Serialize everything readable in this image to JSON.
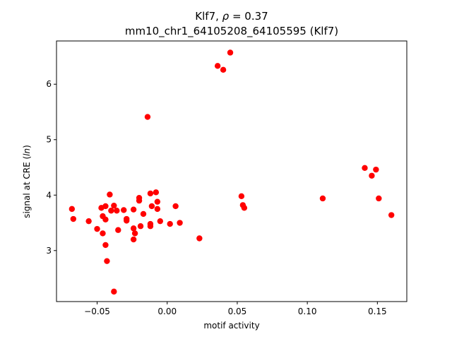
{
  "chart_data": {
    "type": "scatter",
    "title_line1_prefix": "Klf7, ",
    "title_line1_rho": "ρ",
    "title_line1_suffix": " = 0.37",
    "title_line2": "mm10_chr1_64105208_64105595 (Klf7)",
    "xlabel": "motif activity",
    "ylabel_prefix": "signal at CRE (",
    "ylabel_italic": "ln",
    "ylabel_suffix": ")",
    "xlim": [
      -0.079,
      0.171
    ],
    "ylim": [
      2.08,
      6.78
    ],
    "xticks": [
      -0.05,
      0.0,
      0.05,
      0.1,
      0.15
    ],
    "xtick_labels": [
      "−0.05",
      "0.00",
      "0.05",
      "0.10",
      "0.15"
    ],
    "yticks": [
      3,
      4,
      5,
      6
    ],
    "ytick_labels": [
      "3",
      "4",
      "5",
      "6"
    ],
    "marker_color": "#ff0000",
    "grid": false,
    "points": [
      {
        "x": -0.068,
        "y": 3.75
      },
      {
        "x": -0.067,
        "y": 3.57
      },
      {
        "x": -0.056,
        "y": 3.53
      },
      {
        "x": -0.05,
        "y": 3.39
      },
      {
        "x": -0.047,
        "y": 3.77
      },
      {
        "x": -0.046,
        "y": 3.62
      },
      {
        "x": -0.046,
        "y": 3.31
      },
      {
        "x": -0.044,
        "y": 3.56
      },
      {
        "x": -0.044,
        "y": 3.8
      },
      {
        "x": -0.044,
        "y": 3.1
      },
      {
        "x": -0.043,
        "y": 2.81
      },
      {
        "x": -0.041,
        "y": 4.01
      },
      {
        "x": -0.04,
        "y": 3.72
      },
      {
        "x": -0.038,
        "y": 3.81
      },
      {
        "x": -0.038,
        "y": 2.26
      },
      {
        "x": -0.036,
        "y": 3.72
      },
      {
        "x": -0.035,
        "y": 3.37
      },
      {
        "x": -0.031,
        "y": 3.73
      },
      {
        "x": -0.029,
        "y": 3.54
      },
      {
        "x": -0.029,
        "y": 3.57
      },
      {
        "x": -0.024,
        "y": 3.74
      },
      {
        "x": -0.024,
        "y": 3.4
      },
      {
        "x": -0.024,
        "y": 3.2
      },
      {
        "x": -0.023,
        "y": 3.31
      },
      {
        "x": -0.02,
        "y": 3.9
      },
      {
        "x": -0.02,
        "y": 3.95
      },
      {
        "x": -0.019,
        "y": 3.44
      },
      {
        "x": -0.017,
        "y": 3.66
      },
      {
        "x": -0.014,
        "y": 5.41
      },
      {
        "x": -0.012,
        "y": 4.03
      },
      {
        "x": -0.012,
        "y": 3.44
      },
      {
        "x": -0.012,
        "y": 3.48
      },
      {
        "x": -0.011,
        "y": 3.8
      },
      {
        "x": -0.008,
        "y": 4.05
      },
      {
        "x": -0.007,
        "y": 3.88
      },
      {
        "x": -0.007,
        "y": 3.75
      },
      {
        "x": -0.005,
        "y": 3.53
      },
      {
        "x": 0.002,
        "y": 3.48
      },
      {
        "x": 0.006,
        "y": 3.8
      },
      {
        "x": 0.009,
        "y": 3.5
      },
      {
        "x": 0.023,
        "y": 3.22
      },
      {
        "x": 0.036,
        "y": 6.33
      },
      {
        "x": 0.04,
        "y": 6.26
      },
      {
        "x": 0.045,
        "y": 6.57
      },
      {
        "x": 0.053,
        "y": 3.98
      },
      {
        "x": 0.054,
        "y": 3.82
      },
      {
        "x": 0.055,
        "y": 3.77
      },
      {
        "x": 0.111,
        "y": 3.94
      },
      {
        "x": 0.141,
        "y": 4.49
      },
      {
        "x": 0.146,
        "y": 4.35
      },
      {
        "x": 0.149,
        "y": 4.46
      },
      {
        "x": 0.151,
        "y": 3.94
      },
      {
        "x": 0.16,
        "y": 3.64
      }
    ]
  }
}
